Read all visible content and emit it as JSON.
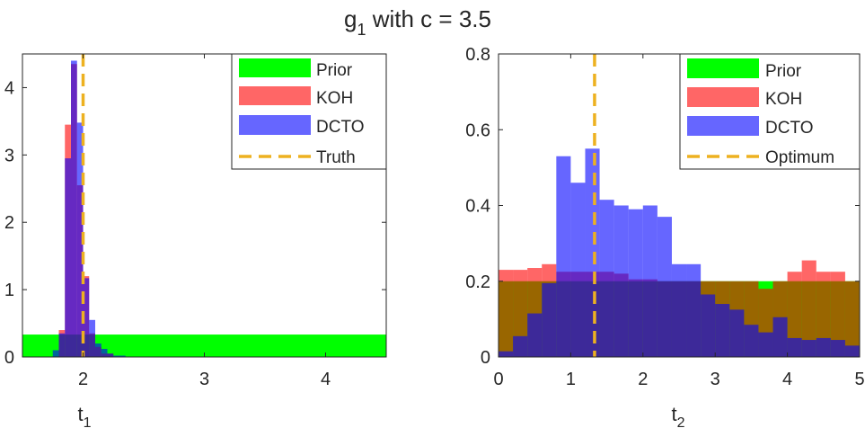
{
  "figure": {
    "title_main": "g",
    "title_sub": "1",
    "title_rest": " with c = 3.5"
  },
  "chart_data": [
    {
      "type": "histogram",
      "xlabel_main": "t",
      "xlabel_sub": "1",
      "xlim": [
        1.5,
        4.5
      ],
      "ylim": [
        0,
        4.5
      ],
      "xticks": [
        2,
        3,
        4
      ],
      "yticks": [
        0,
        1,
        2,
        3,
        4
      ],
      "legend_position": "top-right",
      "bin_start": 1.7,
      "bin_width": 0.05,
      "series": [
        {
          "name": "Prior",
          "color": "#00ff00",
          "bins": [
            {
              "x0": 1.5,
              "x1": 4.5,
              "y": 0.333
            }
          ]
        },
        {
          "name": "KOH",
          "color": "#ff0000",
          "values": [
            0.0,
            0.0,
            0.4,
            3.45,
            4.35,
            2.55,
            1.2,
            0.35,
            0.15,
            0.05,
            0.05
          ]
        },
        {
          "name": "DCTO",
          "color": "#0000ff",
          "values": [
            0.0,
            0.1,
            0.35,
            2.95,
            4.4,
            3.48,
            1.17,
            0.55,
            0.2,
            0.12,
            0.05,
            0.02,
            0.02
          ]
        }
      ],
      "reference_line": {
        "name": "Truth",
        "x": 2.0,
        "color": "#edb120"
      }
    },
    {
      "type": "histogram",
      "xlabel_main": "t",
      "xlabel_sub": "2",
      "xlim": [
        0,
        5
      ],
      "ylim": [
        0,
        0.8
      ],
      "xticks": [
        0,
        1,
        2,
        3,
        4,
        5
      ],
      "yticks": [
        "0",
        "0.2",
        "0.4",
        "0.6",
        "0.8"
      ],
      "legend_position": "top-right",
      "bin_start": 0,
      "bin_width": 0.2,
      "series": [
        {
          "name": "Prior",
          "color": "#00ff00",
          "bins": [
            {
              "x0": 0,
              "x1": 5,
              "y": 0.2
            }
          ]
        },
        {
          "name": "KOH",
          "color": "#ff0000",
          "values": [
            0.23,
            0.23,
            0.235,
            0.245,
            0.225,
            0.225,
            0.225,
            0.225,
            0.22,
            0.205,
            0.205,
            0.2,
            0.2,
            0.2,
            0.2,
            0.2,
            0.2,
            0.2,
            0.18,
            0.2,
            0.225,
            0.255,
            0.225,
            0.225,
            0.2
          ]
        },
        {
          "name": "DCTO",
          "color": "#0000ff",
          "values": [
            0.015,
            0.055,
            0.115,
            0.195,
            0.53,
            0.46,
            0.55,
            0.415,
            0.4,
            0.39,
            0.4,
            0.37,
            0.245,
            0.245,
            0.165,
            0.14,
            0.125,
            0.085,
            0.065,
            0.105,
            0.05,
            0.045,
            0.05,
            0.045,
            0.03
          ]
        }
      ],
      "reference_line": {
        "name": "Optimum",
        "x": 1.33,
        "color": "#edb120"
      }
    }
  ]
}
